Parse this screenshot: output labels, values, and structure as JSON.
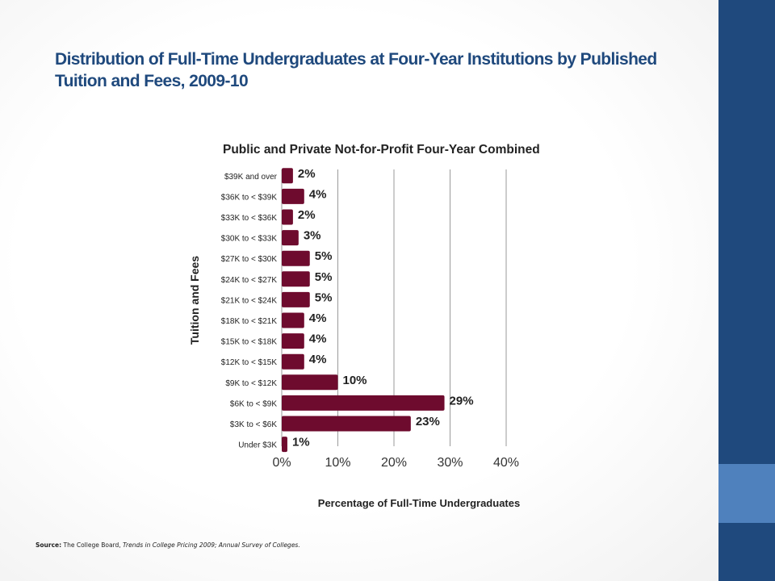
{
  "slide": {
    "title": "Distribution of Full-Time Undergraduates at Four-Year Institutions by Published Tuition and Fees, 2009-10",
    "source_label": "Source:",
    "source_text": " The College Board, ",
    "source_italic": "Trends in College Pricing 2009; Annual Survey of Colleges.",
    "colors": {
      "title": "#1f497d",
      "side_dark": "#1f497d",
      "side_light": "#4f81bd"
    }
  },
  "chart_data": {
    "type": "bar",
    "orientation": "horizontal",
    "title": "Public and Private Not-for-Profit Four-Year Combined",
    "xlabel": "Percentage of Full-Time Undergraduates",
    "ylabel": "Tuition and Fees",
    "categories": [
      "$39K and over",
      "$36K to < $39K",
      "$33K to < $36K",
      "$30K to < $33K",
      "$27K to < $30K",
      "$24K to < $27K",
      "$21K to < $24K",
      "$18K to < $21K",
      "$15K to < $18K",
      "$12K to < $15K",
      "$9K to < $12K",
      "$6K to < $9K",
      "$3K to < $6K",
      "Under $3K"
    ],
    "values": [
      2,
      4,
      2,
      3,
      5,
      5,
      5,
      4,
      4,
      4,
      10,
      29,
      23,
      1
    ],
    "data_labels": [
      "2%",
      "4%",
      "2%",
      "3%",
      "5%",
      "5%",
      "5%",
      "4%",
      "4%",
      "4%",
      "10%",
      "29%",
      "23%",
      "1%"
    ],
    "xlim": [
      0,
      40
    ],
    "xticks": [
      0,
      10,
      20,
      30,
      40
    ],
    "xtick_labels": [
      "0%",
      "10%",
      "20%",
      "30%",
      "40%"
    ],
    "grid": true,
    "bar_color": "#6e0b2e"
  }
}
